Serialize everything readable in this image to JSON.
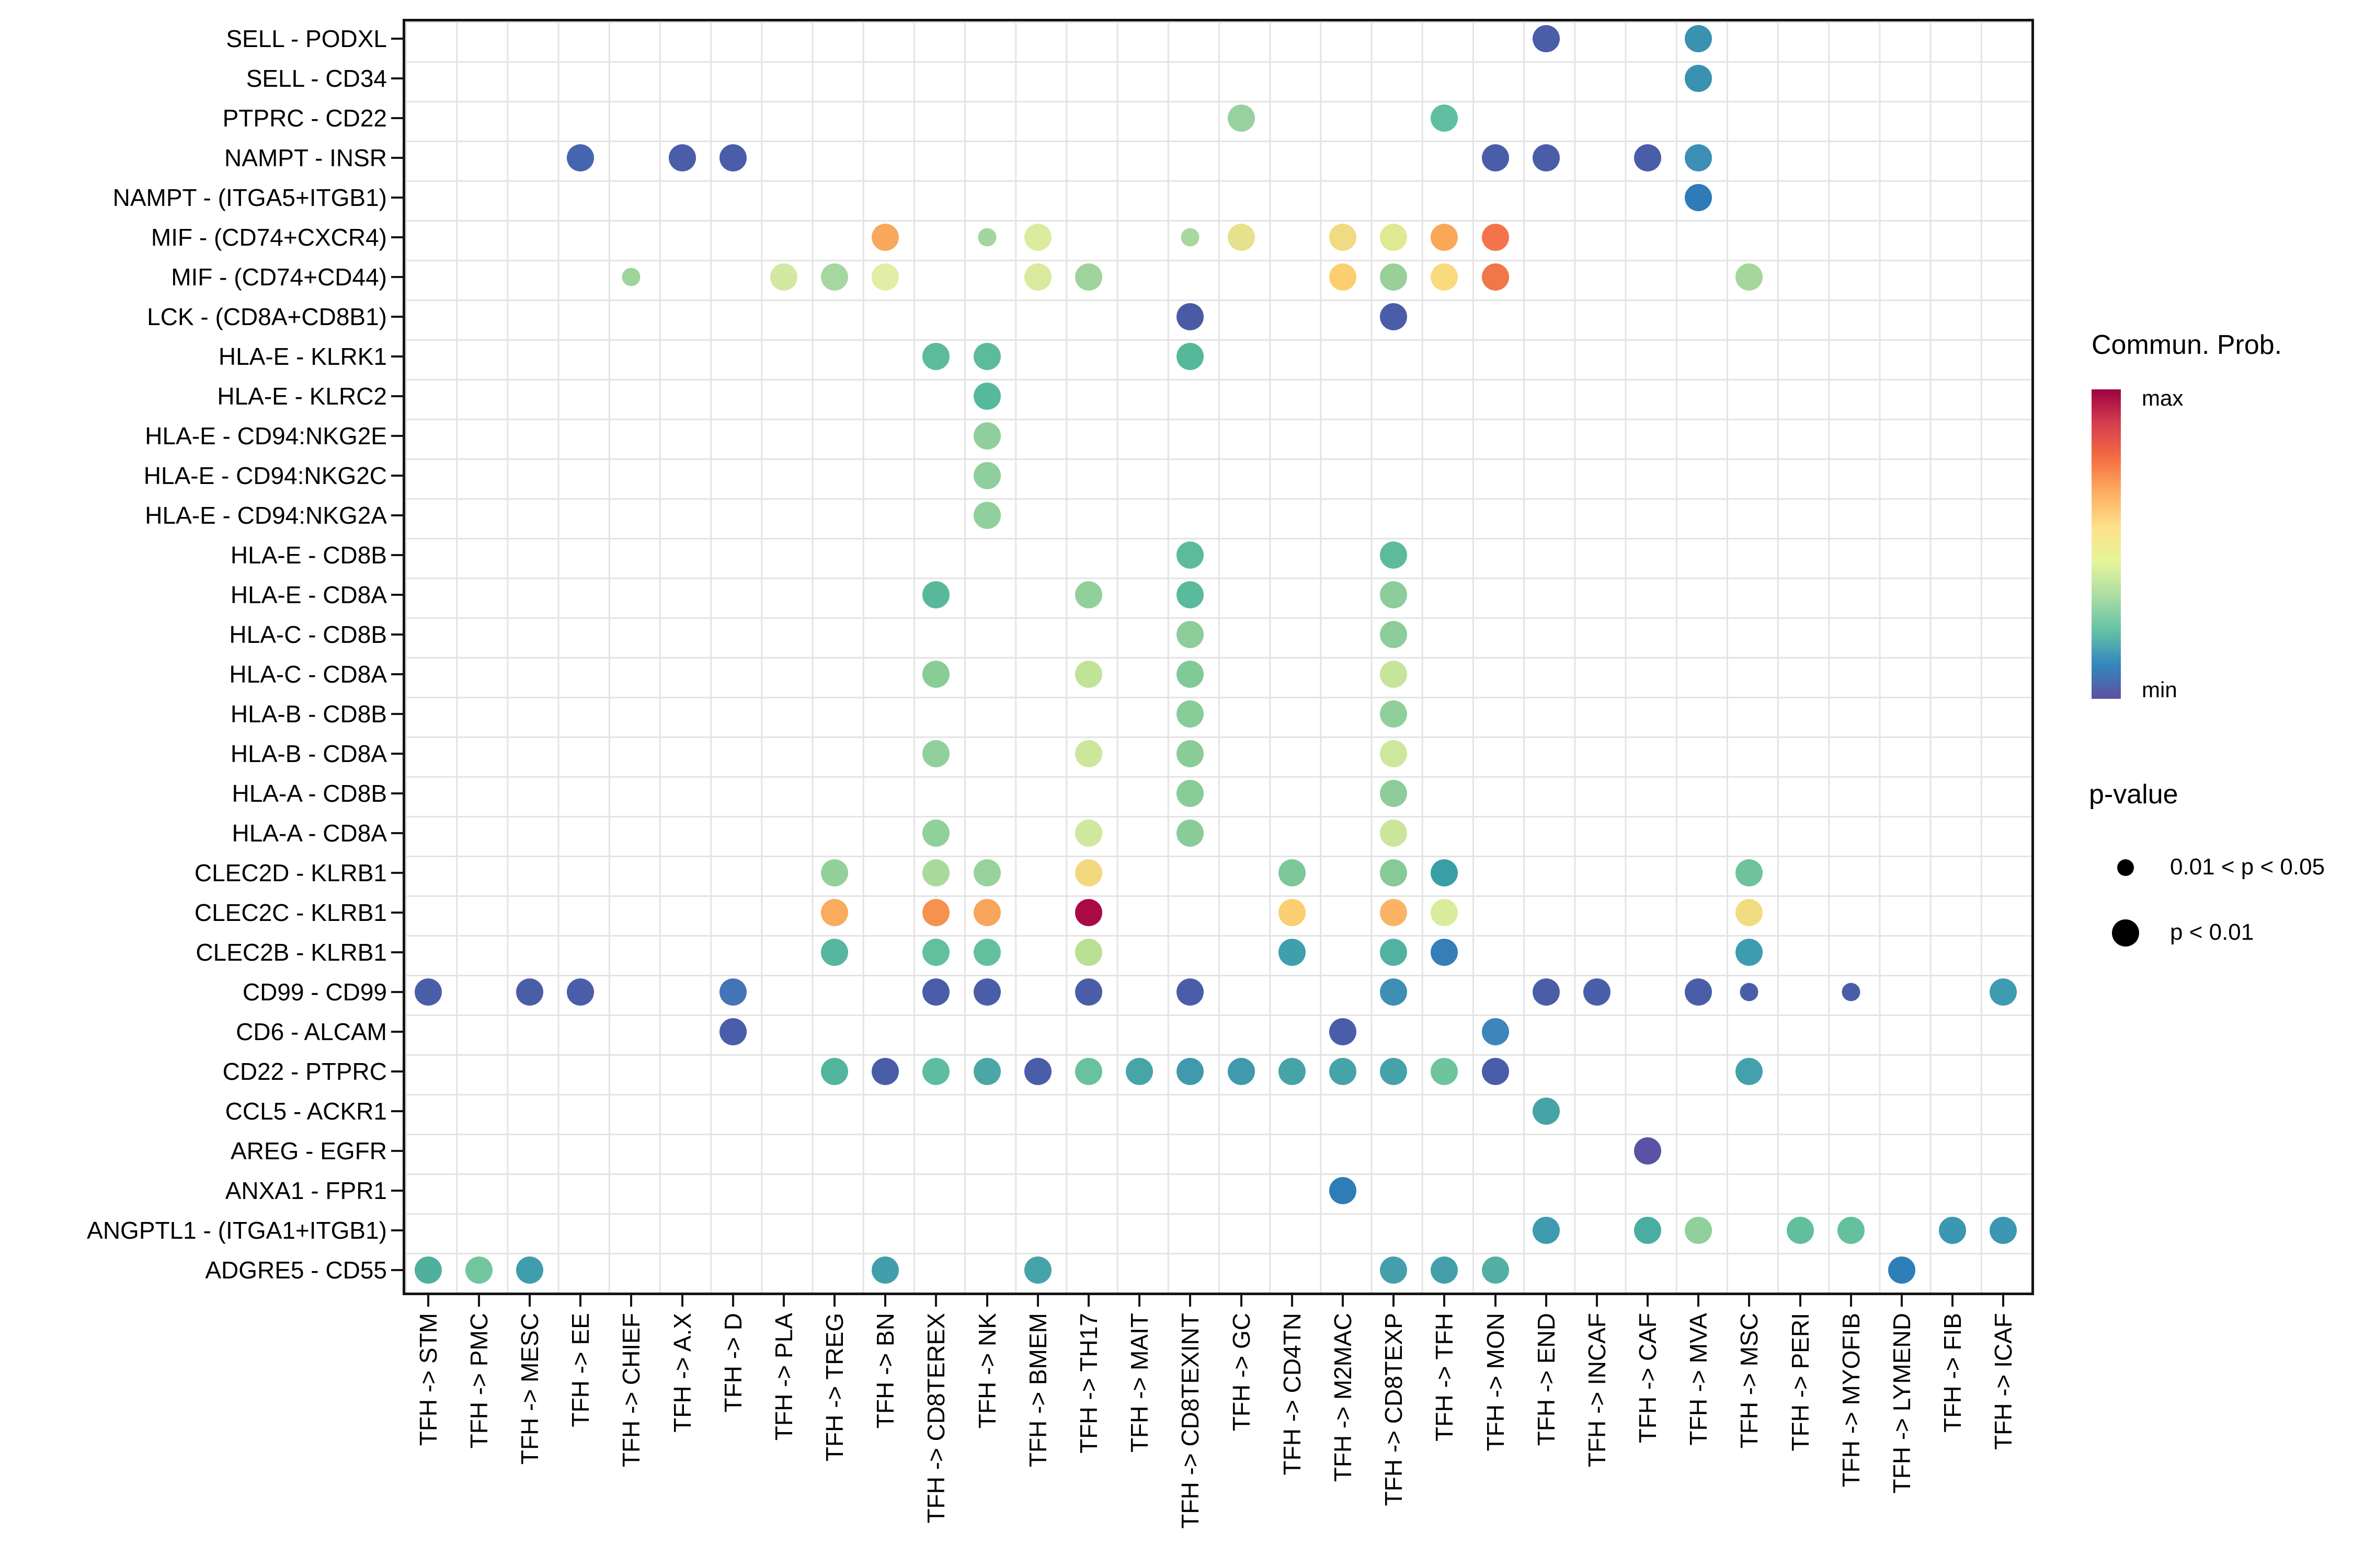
{
  "chart_data": {
    "type": "scatter",
    "subtype": "bubble-matrix (ligand-receptor communication dot plot)",
    "grid": "light gray lines at cell boundaries, white panel, black panel border",
    "rows": [
      "SELL - PODXL",
      "SELL - CD34",
      "PTPRC - CD22",
      "NAMPT - INSR",
      "NAMPT - (ITGA5+ITGB1)",
      "MIF - (CD74+CXCR4)",
      "MIF - (CD74+CD44)",
      "LCK - (CD8A+CD8B1)",
      "HLA-E - KLRK1",
      "HLA-E - KLRC2",
      "HLA-E - CD94:NKG2E",
      "HLA-E - CD94:NKG2C",
      "HLA-E - CD94:NKG2A",
      "HLA-E - CD8B",
      "HLA-E - CD8A",
      "HLA-C - CD8B",
      "HLA-C - CD8A",
      "HLA-B - CD8B",
      "HLA-B - CD8A",
      "HLA-A - CD8B",
      "HLA-A - CD8A",
      "CLEC2D - KLRB1",
      "CLEC2C - KLRB1",
      "CLEC2B - KLRB1",
      "CD99 - CD99",
      "CD6 - ALCAM",
      "CD22 - PTPRC",
      "CCL5 - ACKR1",
      "AREG - EGFR",
      "ANXA1 - FPR1",
      "ANGPTL1 - (ITGA1+ITGB1)",
      "ADGRE5 - CD55"
    ],
    "columns": [
      "TFH -> STM",
      "TFH -> PMC",
      "TFH -> MESC",
      "TFH -> EE",
      "TFH -> CHIEF",
      "TFH -> A.X",
      "TFH -> D",
      "TFH -> PLA",
      "TFH -> TREG",
      "TFH -> BN",
      "TFH -> CD8TEREX",
      "TFH -> NK",
      "TFH -> BMEM",
      "TFH -> TH17",
      "TFH -> MAIT",
      "TFH -> CD8TEXINT",
      "TFH -> GC",
      "TFH -> CD4TN",
      "TFH -> M2MAC",
      "TFH -> CD8TEXP",
      "TFH -> TFH",
      "TFH -> MON",
      "TFH -> END",
      "TFH -> INCAF",
      "TFH -> CAF",
      "TFH -> MVA",
      "TFH -> MSC",
      "TFH -> PERI",
      "TFH -> MYOFIB",
      "TFH -> LYMEND",
      "TFH -> FIB",
      "TFH -> ICAF"
    ],
    "points_key": [
      "row_index",
      "col_index",
      "color",
      "p_size (L = p<0.01 big dot, S = 0.01<p<0.05 small dot)"
    ],
    "points": [
      [
        0,
        22,
        "#4a5da9",
        "L"
      ],
      [
        0,
        25,
        "#3a91b0",
        "L"
      ],
      [
        1,
        25,
        "#3a91b0",
        "L"
      ],
      [
        2,
        16,
        "#97d1a0",
        "L"
      ],
      [
        2,
        20,
        "#5fbfa0",
        "L"
      ],
      [
        3,
        3,
        "#4565af",
        "L"
      ],
      [
        3,
        5,
        "#4a5da9",
        "L"
      ],
      [
        3,
        6,
        "#4a5da9",
        "L"
      ],
      [
        3,
        21,
        "#4a5da9",
        "L"
      ],
      [
        3,
        22,
        "#4a5da9",
        "L"
      ],
      [
        3,
        24,
        "#4a5da9",
        "L"
      ],
      [
        3,
        25,
        "#3d8fb5",
        "L"
      ],
      [
        4,
        25,
        "#2f7ab8",
        "L"
      ],
      [
        5,
        9,
        "#f9a85c",
        "L"
      ],
      [
        5,
        11,
        "#a3d69c",
        "S"
      ],
      [
        5,
        12,
        "#dcec9f",
        "L"
      ],
      [
        5,
        15,
        "#a8d89e",
        "S"
      ],
      [
        5,
        16,
        "#e6e18c",
        "L"
      ],
      [
        5,
        18,
        "#f0da82",
        "L"
      ],
      [
        5,
        19,
        "#dfe992",
        "L"
      ],
      [
        5,
        20,
        "#f9a858",
        "L"
      ],
      [
        5,
        21,
        "#f3744b",
        "L"
      ],
      [
        6,
        4,
        "#9ed49c",
        "S"
      ],
      [
        6,
        7,
        "#d3e8a0",
        "L"
      ],
      [
        6,
        8,
        "#a6d7a0",
        "L"
      ],
      [
        6,
        9,
        "#e2eda5",
        "L"
      ],
      [
        6,
        12,
        "#d9ea9e",
        "L"
      ],
      [
        6,
        13,
        "#a0d39b",
        "L"
      ],
      [
        6,
        18,
        "#fbcf6f",
        "L"
      ],
      [
        6,
        19,
        "#99d097",
        "L"
      ],
      [
        6,
        20,
        "#fada7d",
        "L"
      ],
      [
        6,
        21,
        "#f1764a",
        "L"
      ],
      [
        6,
        26,
        "#a5d69b",
        "L"
      ],
      [
        7,
        15,
        "#4a5ba6",
        "L"
      ],
      [
        7,
        19,
        "#4a5da9",
        "L"
      ],
      [
        8,
        10,
        "#5cbb9b",
        "L"
      ],
      [
        8,
        11,
        "#5cbb9b",
        "L"
      ],
      [
        8,
        15,
        "#55b898",
        "L"
      ],
      [
        9,
        11,
        "#55b99c",
        "L"
      ],
      [
        10,
        11,
        "#8ecf9c",
        "L"
      ],
      [
        11,
        11,
        "#8ecf9c",
        "L"
      ],
      [
        12,
        11,
        "#90d09c",
        "L"
      ],
      [
        13,
        15,
        "#5cbb9b",
        "L"
      ],
      [
        13,
        19,
        "#5cbb9b",
        "L"
      ],
      [
        14,
        10,
        "#57b99a",
        "L"
      ],
      [
        14,
        13,
        "#92d09b",
        "L"
      ],
      [
        14,
        15,
        "#5aba9c",
        "L"
      ],
      [
        14,
        19,
        "#8ccd9b",
        "L"
      ],
      [
        15,
        15,
        "#8ccd9a",
        "L"
      ],
      [
        15,
        19,
        "#8ccd9b",
        "L"
      ],
      [
        16,
        10,
        "#88cc96",
        "L"
      ],
      [
        16,
        13,
        "#c1e398",
        "L"
      ],
      [
        16,
        15,
        "#82c998",
        "L"
      ],
      [
        16,
        19,
        "#c6e49a",
        "L"
      ],
      [
        17,
        15,
        "#88cc98",
        "L"
      ],
      [
        17,
        19,
        "#90cf9b",
        "L"
      ],
      [
        18,
        10,
        "#90d09a",
        "L"
      ],
      [
        18,
        13,
        "#cce79c",
        "L"
      ],
      [
        18,
        15,
        "#8acc98",
        "L"
      ],
      [
        18,
        19,
        "#cde79c",
        "L"
      ],
      [
        19,
        15,
        "#88cc98",
        "L"
      ],
      [
        19,
        19,
        "#8ecd9b",
        "L"
      ],
      [
        20,
        10,
        "#90d09a",
        "L"
      ],
      [
        20,
        13,
        "#cfe89d",
        "L"
      ],
      [
        20,
        15,
        "#8acc98",
        "L"
      ],
      [
        20,
        19,
        "#cbe69b",
        "L"
      ],
      [
        21,
        8,
        "#93d09a",
        "L"
      ],
      [
        21,
        10,
        "#a8da9c",
        "L"
      ],
      [
        21,
        11,
        "#97d29a",
        "L"
      ],
      [
        21,
        13,
        "#f2d97f",
        "L"
      ],
      [
        21,
        17,
        "#7cc898",
        "L"
      ],
      [
        21,
        19,
        "#85ca97",
        "L"
      ],
      [
        21,
        20,
        "#3a9ea6",
        "L"
      ],
      [
        21,
        26,
        "#6fc39a",
        "L"
      ],
      [
        22,
        8,
        "#f9ab5e",
        "L"
      ],
      [
        22,
        10,
        "#f5924f",
        "L"
      ],
      [
        22,
        11,
        "#f9a55b",
        "L"
      ],
      [
        22,
        13,
        "#aa0a44",
        "L"
      ],
      [
        22,
        17,
        "#fbce71",
        "L"
      ],
      [
        22,
        19,
        "#fbb365",
        "L"
      ],
      [
        22,
        20,
        "#d9ec9b",
        "L"
      ],
      [
        22,
        26,
        "#f2dc80",
        "L"
      ],
      [
        23,
        8,
        "#56b69f",
        "L"
      ],
      [
        23,
        10,
        "#62c09e",
        "L"
      ],
      [
        23,
        11,
        "#62c09e",
        "L"
      ],
      [
        23,
        13,
        "#b9e093",
        "L"
      ],
      [
        23,
        17,
        "#3f9fad",
        "L"
      ],
      [
        23,
        19,
        "#52b2a2",
        "L"
      ],
      [
        23,
        20,
        "#357eb8",
        "L"
      ],
      [
        23,
        26,
        "#3e9cb0",
        "L"
      ],
      [
        24,
        0,
        "#4a5da9",
        "L"
      ],
      [
        24,
        2,
        "#4a5da9",
        "L"
      ],
      [
        24,
        3,
        "#4a5da9",
        "L"
      ],
      [
        24,
        6,
        "#4374b6",
        "L"
      ],
      [
        24,
        10,
        "#4a5da9",
        "L"
      ],
      [
        24,
        11,
        "#4a5da9",
        "L"
      ],
      [
        24,
        13,
        "#4a5da9",
        "L"
      ],
      [
        24,
        15,
        "#4a5da9",
        "L"
      ],
      [
        24,
        19,
        "#3d8fb5",
        "L"
      ],
      [
        24,
        22,
        "#4a5da9",
        "L"
      ],
      [
        24,
        23,
        "#4a5da9",
        "L"
      ],
      [
        24,
        25,
        "#4a5da9",
        "L"
      ],
      [
        24,
        26,
        "#4a5da9",
        "S"
      ],
      [
        24,
        28,
        "#4a5da9",
        "S"
      ],
      [
        24,
        31,
        "#3e9bb2",
        "L"
      ],
      [
        25,
        6,
        "#4a5da9",
        "L"
      ],
      [
        25,
        18,
        "#4a5da9",
        "L"
      ],
      [
        25,
        21,
        "#3d86bb",
        "L"
      ],
      [
        26,
        8,
        "#52b69c",
        "L"
      ],
      [
        26,
        9,
        "#4a5da9",
        "L"
      ],
      [
        26,
        10,
        "#5cbda1",
        "L"
      ],
      [
        26,
        11,
        "#4aa7a6",
        "L"
      ],
      [
        26,
        12,
        "#4a5da9",
        "L"
      ],
      [
        26,
        13,
        "#68c29e",
        "L"
      ],
      [
        26,
        14,
        "#48a5a7",
        "L"
      ],
      [
        26,
        15,
        "#4099ad",
        "L"
      ],
      [
        26,
        16,
        "#4099ad",
        "L"
      ],
      [
        26,
        17,
        "#46a3a8",
        "L"
      ],
      [
        26,
        18,
        "#46a3a8",
        "L"
      ],
      [
        26,
        19,
        "#45a2a9",
        "L"
      ],
      [
        26,
        20,
        "#6ec49d",
        "L"
      ],
      [
        26,
        21,
        "#4a5da9",
        "L"
      ],
      [
        26,
        26,
        "#44a0ab",
        "L"
      ],
      [
        27,
        22,
        "#46a3a8",
        "L"
      ],
      [
        28,
        24,
        "#5b51a5",
        "L"
      ],
      [
        29,
        18,
        "#2f7db7",
        "L"
      ],
      [
        30,
        22,
        "#3e9bb0",
        "L"
      ],
      [
        30,
        24,
        "#4aada1",
        "L"
      ],
      [
        30,
        25,
        "#8fd09b",
        "L"
      ],
      [
        30,
        27,
        "#62bf9d",
        "L"
      ],
      [
        30,
        28,
        "#65c19d",
        "L"
      ],
      [
        30,
        30,
        "#3b97b2",
        "L"
      ],
      [
        30,
        31,
        "#3b97b2",
        "L"
      ],
      [
        31,
        0,
        "#4fb09e",
        "L"
      ],
      [
        31,
        1,
        "#72c69e",
        "L"
      ],
      [
        31,
        2,
        "#3f9dad",
        "L"
      ],
      [
        31,
        9,
        "#419fab",
        "L"
      ],
      [
        31,
        12,
        "#45a3a9",
        "L"
      ],
      [
        31,
        19,
        "#459fab",
        "L"
      ],
      [
        31,
        20,
        "#459fab",
        "L"
      ],
      [
        31,
        21,
        "#52afa3",
        "L"
      ],
      [
        31,
        29,
        "#2e7eb8",
        "L"
      ]
    ],
    "legend": {
      "color_title": "Commun. Prob.",
      "color_max_label": "max",
      "color_min_label": "min",
      "colorbar_gradient_top_to_bottom": [
        "#9e0142",
        "#d53e4f",
        "#f46d43",
        "#fdae61",
        "#fee08b",
        "#e6f598",
        "#abdda4",
        "#66c2a5",
        "#3288bd",
        "#5e4fa2"
      ],
      "size_title": "p-value",
      "size_items": [
        {
          "label": "0.01 < p < 0.05",
          "size": "small"
        },
        {
          "label": "p < 0.01",
          "size": "large"
        }
      ]
    },
    "axis": {
      "x_label": "",
      "y_label": "",
      "x_tick_rotation_deg": 90
    }
  }
}
